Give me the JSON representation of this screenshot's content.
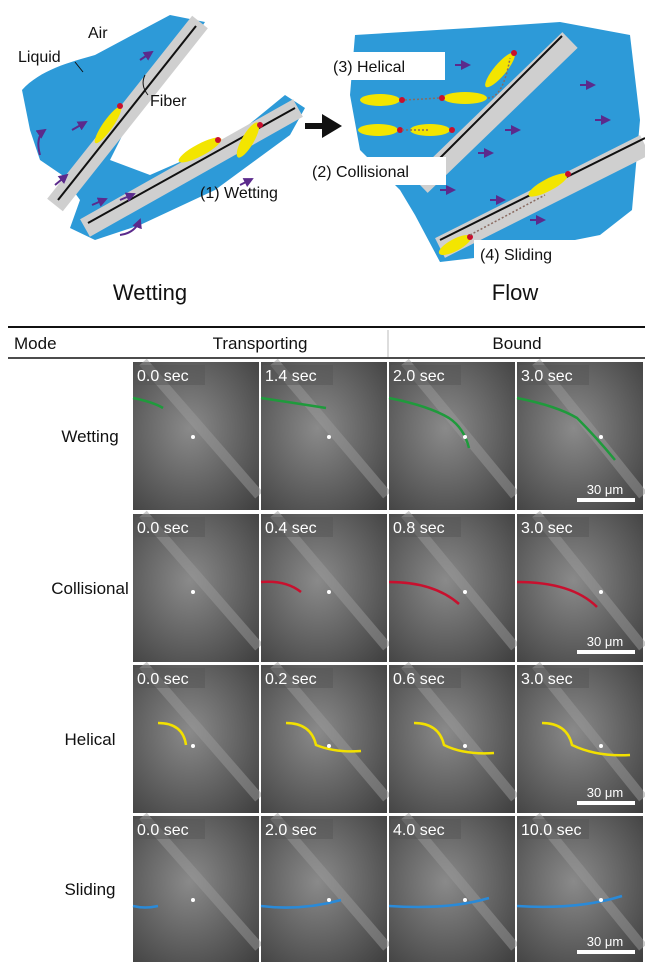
{
  "diagram": {
    "labels": {
      "air": "Air",
      "liquid": "Liquid",
      "fiber": "Fiber",
      "wetting_mode": "(1) Wetting",
      "helical_mode": "(3) Helical",
      "collisional_mode": "(2) Collisional",
      "sliding_mode": "(4) Sliding"
    },
    "left_title": "Wetting",
    "right_title": "Flow"
  },
  "table": {
    "header": [
      "Mode",
      "Transporting",
      "Bound"
    ],
    "rows": [
      {
        "mode": "Wetting",
        "times": [
          "0.0 sec",
          "1.4 sec",
          "2.0 sec",
          "3.0 sec"
        ]
      },
      {
        "mode": "Collisional",
        "times": [
          "0.0 sec",
          "0.4 sec",
          "0.8 sec",
          "3.0 sec"
        ]
      },
      {
        "mode": "Helical",
        "times": [
          "0.0 sec",
          "0.2 sec",
          "0.6 sec",
          "3.0 sec"
        ]
      },
      {
        "mode": "Sliding",
        "times": [
          "0.0 sec",
          "2.0 sec",
          "4.0 sec",
          "10.0 sec"
        ]
      }
    ],
    "scale_bar": "30 μm"
  }
}
